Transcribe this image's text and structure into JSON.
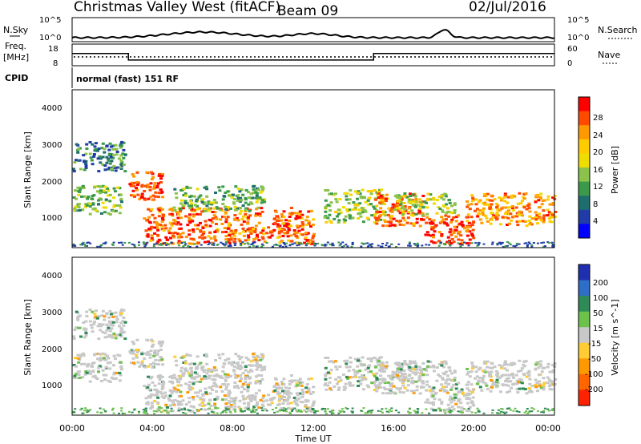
{
  "header": {
    "radar": "Christmas Valley West (fitACF)",
    "beam": "Beam 09",
    "date": "02/Jul/2016"
  },
  "sky_panel": {
    "left_label": "N.Sky",
    "right_label": "N.Search",
    "left_ticks": [
      "10^5",
      "10^0"
    ],
    "right_ticks": [
      "10^5",
      "10^0"
    ]
  },
  "freq_panel": {
    "left_label_line1": "Freq.",
    "left_label_line2": "[MHz]",
    "right_label": "Nave",
    "left_ticks": [
      "18",
      "8"
    ],
    "right_ticks": [
      "60",
      "0"
    ]
  },
  "cpid": {
    "label": "CPID",
    "text": "normal (fast) 151 RF"
  },
  "power_panel": {
    "ylabel": "Slant Range [km]",
    "yticks": [
      "4000",
      "3000",
      "2000",
      "1000"
    ],
    "colorbar_label": "Power [dB]",
    "colorbar_ticks": [
      "28",
      "24",
      "20",
      "16",
      "12",
      "8",
      "4"
    ],
    "colorbar_colors": [
      "#ff0000",
      "#ff4a00",
      "#ff9900",
      "#ffcc00",
      "#eedd00",
      "#8bc34a",
      "#3a9a4a",
      "#1e6e6e",
      "#1f3ca8",
      "#0000ff"
    ]
  },
  "velocity_panel": {
    "ylabel": "Slant Range [km]",
    "yticks": [
      "4000",
      "3000",
      "2000",
      "1000"
    ],
    "colorbar_label": "Velocity [m s^-1]",
    "colorbar_ticks": [
      "200",
      "100",
      "50",
      "15",
      "-15",
      "-50",
      "-100",
      "-200"
    ],
    "colorbar_colors": [
      "#1f2fb0",
      "#2f6ec7",
      "#2e8b57",
      "#6cc24a",
      "#c8c8c8",
      "#ffcc33",
      "#ff9900",
      "#ff6600",
      "#ff2200"
    ]
  },
  "xaxis": {
    "label": "Time UT",
    "ticks": [
      "00:00",
      "04:00",
      "08:00",
      "12:00",
      "16:00",
      "20:00",
      "00:00"
    ]
  },
  "chart_data": {
    "type": "heatmap",
    "title": "Christmas Valley West (fitACF) Beam 09 02/Jul/2016",
    "xlabel": "Time UT",
    "ylabel": "Slant Range [km]",
    "xlim": [
      0,
      24
    ],
    "ylim": [
      180,
      4500
    ],
    "frequency_mhz": [
      {
        "from": 0,
        "to": 2.8,
        "value": 14
      },
      {
        "from": 2.8,
        "to": 15.0,
        "value": 11
      },
      {
        "from": 15.0,
        "to": 24,
        "value": 14
      }
    ],
    "power_echo_regions": [
      {
        "t0": 0.0,
        "t1": 2.6,
        "r0": 2300,
        "r1": 3100,
        "power_db": 10
      },
      {
        "t0": 0.0,
        "t1": 2.4,
        "r0": 1100,
        "r1": 1900,
        "power_db": 14
      },
      {
        "t0": 2.8,
        "t1": 4.5,
        "r0": 1500,
        "r1": 2300,
        "power_db": 28
      },
      {
        "t0": 3.5,
        "t1": 12.0,
        "r0": 300,
        "r1": 1300,
        "power_db": 26
      },
      {
        "t0": 5.0,
        "t1": 9.5,
        "r0": 1200,
        "r1": 1900,
        "power_db": 14
      },
      {
        "t0": 12.5,
        "t1": 15.5,
        "r0": 900,
        "r1": 1800,
        "power_db": 16
      },
      {
        "t0": 15.0,
        "t1": 17.5,
        "r0": 800,
        "r1": 1700,
        "power_db": 26
      },
      {
        "t0": 16.0,
        "t1": 19.0,
        "r0": 1100,
        "r1": 1700,
        "power_db": 16
      },
      {
        "t0": 17.5,
        "t1": 20.0,
        "r0": 300,
        "r1": 1100,
        "power_db": 28
      },
      {
        "t0": 19.5,
        "t1": 24.0,
        "r0": 800,
        "r1": 1700,
        "power_db": 24
      }
    ]
  }
}
